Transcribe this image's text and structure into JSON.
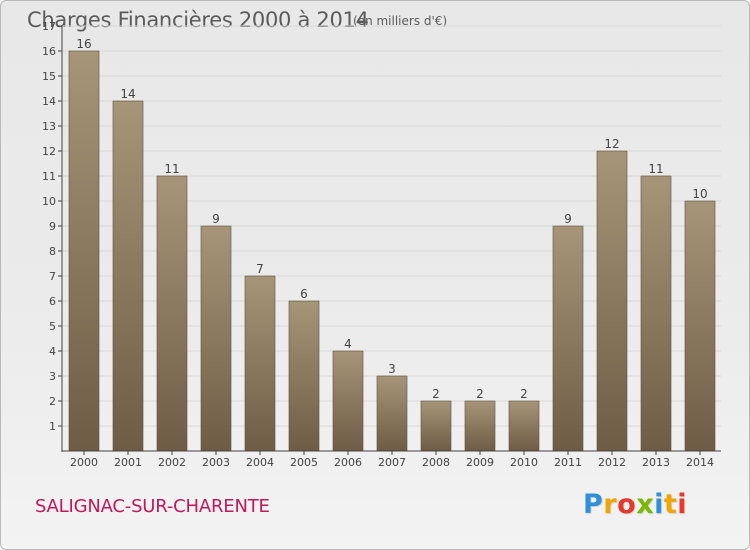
{
  "header": {
    "title": "Charges Financières 2000 à 2014",
    "subtitle": "(en milliers d'€)"
  },
  "footer": {
    "commune": "SALIGNAC-SUR-CHARENTE",
    "brand_letters": [
      "P",
      "r",
      "o",
      "x",
      "i",
      "t",
      "i"
    ],
    "brand_colors": [
      "#2f8fd8",
      "#f0a500",
      "#e6392b",
      "#7ab800",
      "#2f8fd8",
      "#f0a500",
      "#e6392b"
    ]
  },
  "colors": {
    "bar_top": "#a79579",
    "bar_bottom": "#6e5c45",
    "axis": "#444444",
    "grid": "#d8d8d8"
  },
  "chart_data": {
    "type": "bar",
    "categories": [
      "2000",
      "2001",
      "2002",
      "2003",
      "2004",
      "2005",
      "2006",
      "2007",
      "2008",
      "2009",
      "2010",
      "2011",
      "2012",
      "2013",
      "2014"
    ],
    "values": [
      16,
      14,
      11,
      9,
      7,
      6,
      4,
      3,
      2,
      2,
      2,
      9,
      12,
      11,
      10
    ],
    "title": "Charges Financières 2000 à 2014",
    "subtitle": "(en milliers d'€)",
    "xlabel": "",
    "ylabel": "",
    "ylim": [
      0,
      17
    ],
    "yticks": [
      1,
      2,
      3,
      4,
      5,
      6,
      7,
      8,
      9,
      10,
      11,
      12,
      13,
      14,
      15,
      16,
      17
    ],
    "grid": true,
    "data_labels": true
  }
}
